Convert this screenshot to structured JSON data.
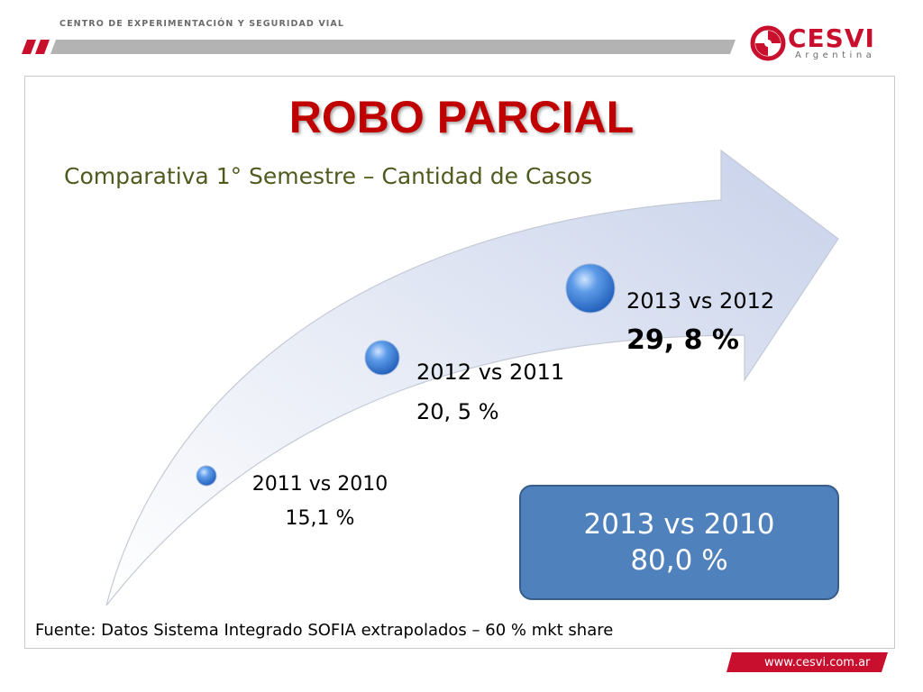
{
  "header": {
    "org_name": "CENTRO DE EXPERIMENTACIÓN Y SEGURIDAD VIAL",
    "logo_text": "CESVI",
    "logo_subtext": "Argentina"
  },
  "slide": {
    "title": "ROBO PARCIAL",
    "subtitle": "Comparativa 1° Semestre – Cantidad de Casos",
    "points": [
      {
        "label": "2011 vs 2010",
        "value": "15,1 %"
      },
      {
        "label": "2012 vs 2011",
        "value": "20, 5 %"
      },
      {
        "label": "2013 vs 2012",
        "value": "29, 8 %"
      }
    ],
    "summary": {
      "label": "2013 vs 2010",
      "value": "80,0 %"
    },
    "source": "Fuente: Datos Sistema Integrado SOFIA extrapolados – 60 % mkt share"
  },
  "footer": {
    "url": "www.cesvi.com.ar"
  },
  "colors": {
    "title": "#c00000",
    "subtitle": "#4e5b1e",
    "box": "#4f81bd",
    "brand_red": "#c8102e"
  }
}
